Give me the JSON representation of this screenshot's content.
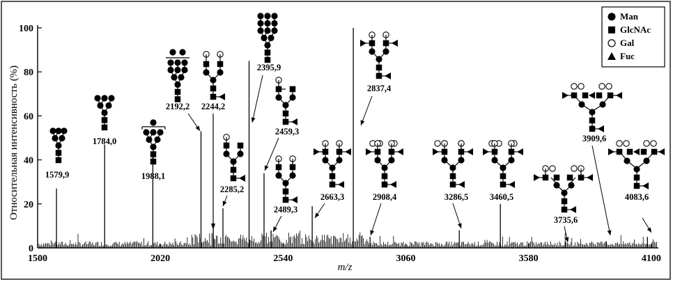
{
  "chart_data": {
    "type": "bar",
    "xlabel": "m/z",
    "ylabel": "Относительная интенсивность (%)",
    "xlim": [
      1500,
      4130
    ],
    "ylim": [
      0,
      100
    ],
    "x_ticks": [
      1500,
      2020,
      2540,
      3060,
      3580,
      4100
    ],
    "y_ticks": [
      0,
      20,
      40,
      60,
      80,
      100
    ],
    "grid": false,
    "legend_position": "top-right",
    "legend": [
      {
        "label": "Man",
        "symbol": "filled-circle"
      },
      {
        "label": "GlcNAc",
        "symbol": "filled-square"
      },
      {
        "label": "Gal",
        "symbol": "open-circle"
      },
      {
        "label": "Fuc",
        "symbol": "filled-triangle"
      }
    ],
    "labeled_peaks": [
      {
        "label": "1579,9",
        "x": 1579.9,
        "y": 27
      },
      {
        "label": "1784,0",
        "x": 1784.0,
        "y": 47
      },
      {
        "label": "1988,1",
        "x": 1988.1,
        "y": 42
      },
      {
        "label": "2192,2",
        "x": 2192.2,
        "y": 53
      },
      {
        "label": "2244,2",
        "x": 2244.2,
        "y": 11
      },
      {
        "label": "2285,2",
        "x": 2285.2,
        "y": 18
      },
      {
        "label": "2395,9",
        "x": 2395.9,
        "y": 85
      },
      {
        "label": "2459,3",
        "x": 2459.3,
        "y": 34
      },
      {
        "label": "2489,3",
        "x": 2489.3,
        "y": 8
      },
      {
        "label": "2663,3",
        "x": 2663.3,
        "y": 19
      },
      {
        "label": "2837,4",
        "x": 2837.4,
        "y": 100
      },
      {
        "label": "2908,4",
        "x": 2908.4,
        "y": 5
      },
      {
        "label": "3286,5",
        "x": 3286.5,
        "y": 8
      },
      {
        "label": "3460,5",
        "x": 3460.5,
        "y": 20
      },
      {
        "label": "3735,6",
        "x": 3735.6,
        "y": 3
      },
      {
        "label": "3909,6",
        "x": 3909.6,
        "y": 3
      },
      {
        "label": "4083,6",
        "x": 4083.6,
        "y": 5
      }
    ]
  }
}
